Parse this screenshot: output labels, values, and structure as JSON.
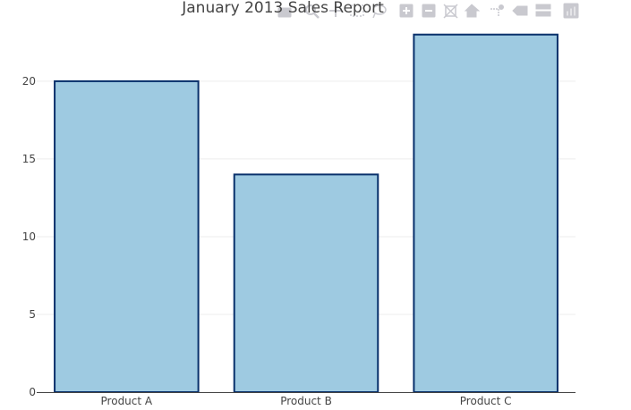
{
  "chart_data": {
    "type": "bar",
    "title": "January 2013 Sales Report",
    "xlabel": "",
    "ylabel": "",
    "categories": [
      "Product A",
      "Product B",
      "Product C"
    ],
    "values": [
      20,
      14,
      23
    ],
    "ylim": [
      0,
      23.5
    ],
    "yticks": [
      0,
      5,
      10,
      15,
      20
    ],
    "grid": true,
    "legend": "none",
    "bar_fill": "#9ecae1",
    "bar_stroke": "#08306b"
  },
  "modebar": {
    "buttons": [
      "camera-icon",
      "zoom-icon",
      "pan-icon",
      "box-select-icon",
      "lasso-select-icon",
      "zoom-in-icon",
      "zoom-out-icon",
      "autoscale-icon",
      "reset-axes-icon",
      "spike-lines-icon",
      "hover-closest-icon",
      "hover-compare-icon",
      "plotly-logo-icon"
    ]
  }
}
